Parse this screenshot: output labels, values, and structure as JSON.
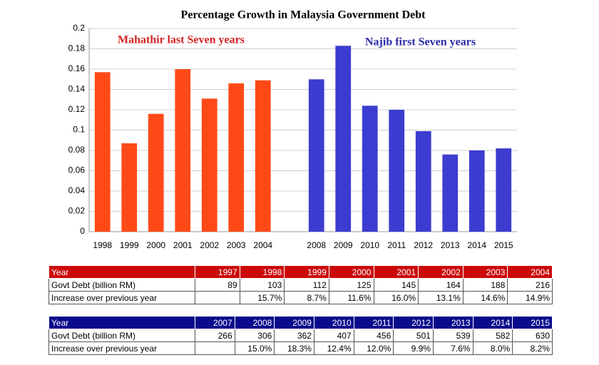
{
  "chart_data": {
    "type": "bar",
    "title": "Percentage Growth in Malaysia Government Debt",
    "categories": [
      "1998",
      "1999",
      "2000",
      "2001",
      "2002",
      "2003",
      "2004",
      null,
      "2008",
      "2009",
      "2010",
      "2011",
      "2012",
      "2013",
      "2014",
      "2015"
    ],
    "series": [
      {
        "name": "Mahathir last Seven years",
        "color": "#ff4a17",
        "label_color": "#d42424",
        "values": [
          0.157,
          0.087,
          0.116,
          0.16,
          0.131,
          0.146,
          0.149,
          null,
          null,
          null,
          null,
          null,
          null,
          null,
          null,
          null
        ]
      },
      {
        "name": "Najib first Seven years",
        "color": "#3c3cd0",
        "label_color": "#2a2aa8",
        "values": [
          null,
          null,
          null,
          null,
          null,
          null,
          null,
          null,
          0.15,
          0.183,
          0.124,
          0.12,
          0.099,
          0.076,
          0.08,
          0.082
        ]
      }
    ],
    "ylim": [
      0,
      0.2
    ],
    "yticks": [
      0,
      0.02,
      0.04,
      0.06,
      0.08,
      0.1,
      0.12,
      0.14,
      0.16,
      0.18,
      0.2
    ],
    "grid": true
  },
  "tables": [
    {
      "header_color": "#cc0a0a",
      "header": [
        "Year",
        "1997",
        "1998",
        "1999",
        "2000",
        "2001",
        "2002",
        "2003",
        "2004"
      ],
      "rows": [
        [
          "Govt Debt (billion RM)",
          "89",
          "103",
          "112",
          "125",
          "145",
          "164",
          "188",
          "216"
        ],
        [
          "Increase over previous year",
          null,
          "15.7%",
          "8.7%",
          "11.6%",
          "16.0%",
          "13.1%",
          "14.6%",
          "14.9%"
        ]
      ]
    },
    {
      "header_color": "#0a0a8c",
      "header": [
        "Year",
        "2007",
        "2008",
        "2009",
        "2010",
        "2011",
        "2012",
        "2013",
        "2014",
        "2015"
      ],
      "rows": [
        [
          "Govt Debt (billion RM)",
          "266",
          "306",
          "362",
          "407",
          "456",
          "501",
          "539",
          "582",
          "630"
        ],
        [
          "Increase over previous year",
          null,
          "15.0%",
          "18.3%",
          "12.4%",
          "12.0%",
          "9.9%",
          "7.6%",
          "8.0%",
          "8.2%"
        ]
      ]
    }
  ]
}
